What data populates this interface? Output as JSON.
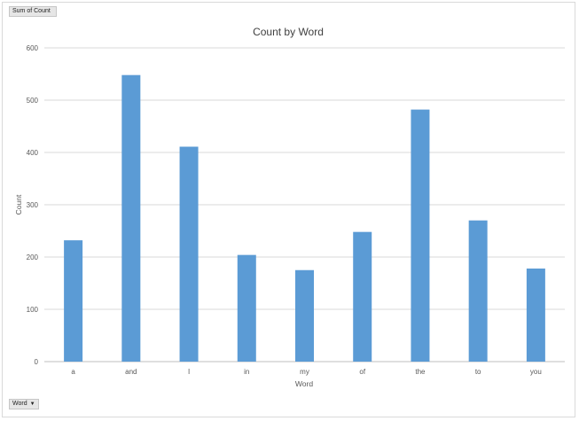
{
  "pivot": {
    "values_field_label": "Sum of Count",
    "axis_field_label": "Word",
    "dropdown_icon": "triangle-down-icon"
  },
  "chart_data": {
    "type": "bar",
    "title": "Count by Word",
    "xlabel": "Word",
    "ylabel": "Count",
    "categories": [
      "a",
      "and",
      "I",
      "in",
      "my",
      "of",
      "the",
      "to",
      "you"
    ],
    "values": [
      232,
      548,
      411,
      204,
      175,
      248,
      482,
      270,
      178
    ],
    "ylim": [
      0,
      600
    ],
    "yticks": [
      0,
      100,
      200,
      300,
      400,
      500,
      600
    ],
    "grid": true,
    "legend": "none",
    "bar_color": "#5b9bd5",
    "grid_color": "#d9d9d9"
  }
}
